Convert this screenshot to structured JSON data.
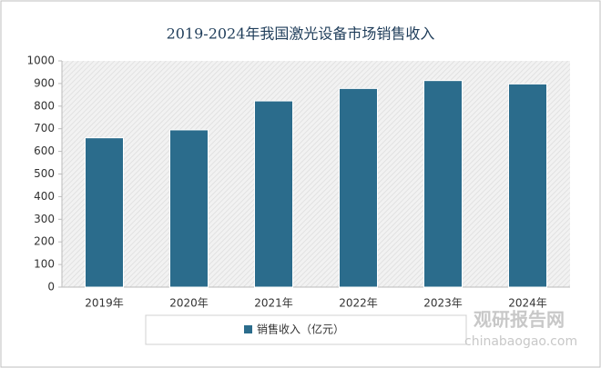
{
  "chart_data": {
    "type": "bar",
    "title": "2019-2024年我国激光设备市场销售收入",
    "categories": [
      "2019年",
      "2020年",
      "2021年",
      "2022年",
      "2023年",
      "2024年"
    ],
    "series": [
      {
        "name": "销售收入（亿元）",
        "color": "#2b6c8c",
        "values": [
          660,
          695,
          823,
          878,
          913,
          898
        ]
      }
    ],
    "ylim": [
      0,
      1000
    ],
    "yticks": [
      0,
      100,
      200,
      300,
      400,
      500,
      600,
      700,
      800,
      900,
      1000
    ],
    "legend": "bottom"
  },
  "watermark": {
    "name": "观研报告网",
    "url": "chinabaogao.com"
  }
}
